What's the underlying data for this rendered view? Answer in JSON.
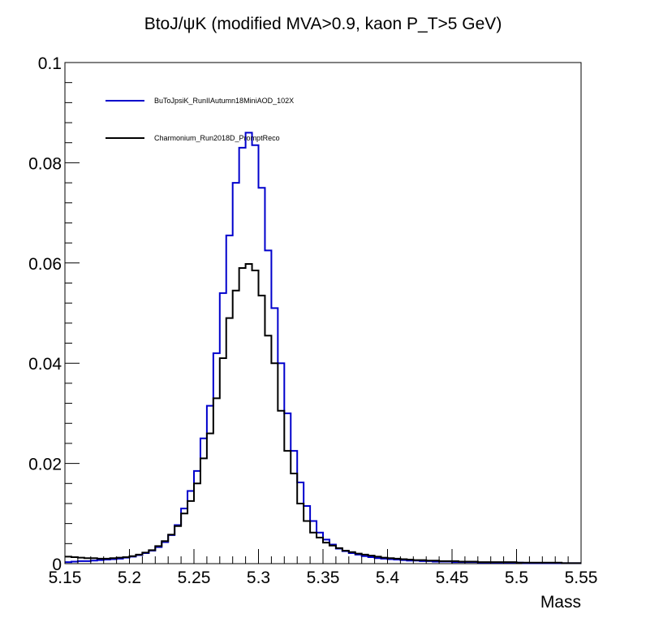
{
  "chart_data": {
    "type": "line",
    "title": "BtoJ/ψK (modified MVA>0.9, kaon P_T>5 GeV)",
    "xlabel": "Mass",
    "ylabel": "",
    "xlim": [
      5.15,
      5.55
    ],
    "ylim": [
      0,
      0.1
    ],
    "x_ticks": [
      5.15,
      5.2,
      5.25,
      5.3,
      5.35,
      5.4,
      5.45,
      5.5,
      5.55
    ],
    "y_ticks": [
      0,
      0.02,
      0.04,
      0.06,
      0.08,
      0.1
    ],
    "x_tick_labels": [
      "5.15",
      "5.2",
      "5.25",
      "5.3",
      "5.35",
      "5.4",
      "5.45",
      "5.5",
      "5.55"
    ],
    "y_tick_labels": [
      "0",
      "0.02",
      "0.04",
      "0.06",
      "0.08",
      "0.1"
    ],
    "bin_width": 0.005,
    "grid": false,
    "legend_position": "top-left",
    "series": [
      {
        "name": "BuToJpsiK_RunIIAutumn18MiniAOD_102X",
        "color": "#0000cc",
        "values": [
          0.0003,
          0.0004,
          0.0005,
          0.0005,
          0.0006,
          0.0007,
          0.0008,
          0.0009,
          0.001,
          0.0012,
          0.0014,
          0.0017,
          0.0021,
          0.0026,
          0.0033,
          0.0043,
          0.0057,
          0.0077,
          0.011,
          0.0145,
          0.0185,
          0.025,
          0.0315,
          0.042,
          0.054,
          0.0655,
          0.076,
          0.083,
          0.086,
          0.0835,
          0.075,
          0.0625,
          0.051,
          0.04,
          0.03,
          0.0225,
          0.0162,
          0.0115,
          0.0085,
          0.0062,
          0.0048,
          0.0038,
          0.003,
          0.0025,
          0.0021,
          0.0018,
          0.0015,
          0.0013,
          0.0011,
          0.001,
          0.0009,
          0.0008,
          0.0007,
          0.0006,
          0.0006,
          0.0005,
          0.0005,
          0.0004,
          0.0004,
          0.0004,
          0.0003,
          0.0003,
          0.0003,
          0.0003,
          0.0002,
          0.0002,
          0.0002,
          0.0002,
          0.0002,
          0.0002,
          0.0002,
          0.0001,
          0.0001,
          0.0001,
          0.0001,
          0.0001,
          0.0001,
          0.0001,
          0.0001,
          0.0001
        ]
      },
      {
        "name": "Charmonium_Run2018D_PromptReco",
        "color": "#000000",
        "values": [
          0.0014,
          0.0013,
          0.0012,
          0.0011,
          0.0011,
          0.001,
          0.001,
          0.0011,
          0.0012,
          0.0013,
          0.0015,
          0.0018,
          0.0022,
          0.0027,
          0.0035,
          0.0045,
          0.0058,
          0.0075,
          0.01,
          0.0125,
          0.016,
          0.021,
          0.026,
          0.033,
          0.041,
          0.049,
          0.0545,
          0.059,
          0.0598,
          0.0585,
          0.0535,
          0.0455,
          0.04,
          0.0305,
          0.0225,
          0.018,
          0.012,
          0.0085,
          0.0062,
          0.0052,
          0.0042,
          0.0036,
          0.0031,
          0.0026,
          0.0023,
          0.002,
          0.0018,
          0.0016,
          0.0014,
          0.0012,
          0.0011,
          0.001,
          0.0009,
          0.0008,
          0.0007,
          0.0007,
          0.0006,
          0.0006,
          0.0005,
          0.0005,
          0.0005,
          0.0004,
          0.0004,
          0.0004,
          0.0003,
          0.0003,
          0.0003,
          0.0003,
          0.0003,
          0.0003,
          0.0002,
          0.0002,
          0.0002,
          0.0002,
          0.0002,
          0.0002,
          0.0002,
          0.0001,
          0.0001,
          0.0001
        ]
      }
    ]
  }
}
